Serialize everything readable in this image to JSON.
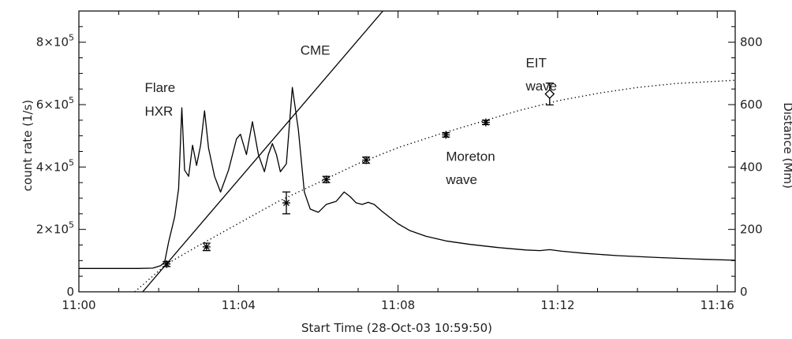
{
  "chart_data": {
    "type": "line",
    "title": "",
    "xlabel": "Start Time (28-Oct-03 10:59:50)",
    "ylabel": "count rate (1/s)",
    "y2label": "Distance (Mm)",
    "xlim": [
      0,
      16.45
    ],
    "ylim": [
      0,
      900000
    ],
    "y2lim": [
      0,
      900
    ],
    "x_ticks": [
      0,
      4,
      8,
      12,
      16
    ],
    "x_tick_labels": [
      "11:00",
      "11:04",
      "11:08",
      "11:12",
      "11:16"
    ],
    "y_ticks": [
      0,
      200000,
      400000,
      600000,
      800000
    ],
    "y_tick_labels": [
      {
        "base": "0",
        "exp": ""
      },
      {
        "base": "2×10",
        "exp": "5"
      },
      {
        "base": "4×10",
        "exp": "5"
      },
      {
        "base": "6×10",
        "exp": "5"
      },
      {
        "base": "8×10",
        "exp": "5"
      }
    ],
    "y2_ticks": [
      0,
      200,
      400,
      600,
      800
    ],
    "y2_tick_labels": [
      "0",
      "200",
      "400",
      "600",
      "800"
    ],
    "grid": false,
    "annotations": [
      {
        "text": "Flare",
        "x": 1.65,
        "y": 640000
      },
      {
        "text": "HXR",
        "x": 1.65,
        "y": 565000
      },
      {
        "text": "CME",
        "x": 5.55,
        "y": 760000
      },
      {
        "text": "EIT",
        "x": 11.2,
        "y": 720000
      },
      {
        "text": "wave",
        "x": 11.2,
        "y": 645000
      },
      {
        "text": "Moreton",
        "x": 9.2,
        "y": 420000
      },
      {
        "text": "wave",
        "x": 9.2,
        "y": 345000
      }
    ],
    "series": [
      {
        "style": "solid",
        "axis": "left",
        "x": [
          0,
          1.5,
          1.85,
          2.05,
          2.15,
          2.25,
          2.4,
          2.5,
          2.58,
          2.65,
          2.75,
          2.85,
          2.95,
          3.05,
          3.15,
          3.25,
          3.4,
          3.55,
          3.75,
          3.95,
          4.05,
          4.2,
          4.35,
          4.5,
          4.65,
          4.75,
          4.85,
          4.95,
          5.05,
          5.2,
          5.35,
          5.5,
          5.65,
          5.8,
          6.0,
          6.2,
          6.45,
          6.65,
          6.8,
          6.95,
          7.1,
          7.25,
          7.4,
          7.6,
          7.8,
          8.0,
          8.3,
          8.7,
          9.2,
          9.8,
          10.5,
          11.2,
          11.55,
          11.8,
          12.1,
          12.7,
          13.5,
          14.5,
          15.5,
          16.45
        ],
        "y": [
          75000,
          75000,
          76000,
          84000,
          95000,
          160000,
          240000,
          330000,
          590000,
          390000,
          370000,
          470000,
          405000,
          470000,
          580000,
          460000,
          370000,
          320000,
          390000,
          490000,
          505000,
          440000,
          545000,
          440000,
          385000,
          440000,
          475000,
          440000,
          385000,
          410000,
          655000,
          520000,
          320000,
          265000,
          255000,
          280000,
          290000,
          320000,
          305000,
          285000,
          280000,
          287000,
          280000,
          258000,
          238000,
          218000,
          196000,
          178000,
          163000,
          152000,
          142000,
          134000,
          132000,
          135000,
          130000,
          123000,
          116000,
          110000,
          105000,
          101000
        ]
      },
      {
        "name": "CME",
        "style": "solid",
        "axis": "right",
        "x": [
          1.6,
          7.62
        ],
        "y": [
          0,
          900
        ]
      },
      {
        "style": "dotted",
        "axis": "right",
        "x": [
          1.4,
          2.2,
          3.0,
          4.0,
          5.0,
          6.0,
          7.0,
          8.0,
          9.0,
          10.0,
          11.0,
          12.0,
          13.0,
          14.0,
          15.0,
          16.45
        ],
        "y": [
          0,
          89,
          148,
          219,
          290,
          350,
          411,
          462,
          504,
          542,
          580,
          612,
          636,
          655,
          668,
          678
        ]
      },
      {
        "name": "Moreton wave",
        "style": "markers",
        "marker": "asterisk",
        "axis": "right",
        "x": [
          2.2,
          3.2,
          5.2,
          6.2,
          7.2,
          9.2,
          10.2
        ],
        "y": [
          89,
          144,
          285,
          360,
          422,
          503,
          543
        ],
        "err": [
          8,
          12,
          35,
          10,
          10,
          7,
          7
        ]
      },
      {
        "name": "EIT wave",
        "style": "markers",
        "marker": "diamond",
        "axis": "right",
        "x": [
          11.8
        ],
        "y": [
          634
        ],
        "err": [
          35
        ]
      }
    ]
  }
}
